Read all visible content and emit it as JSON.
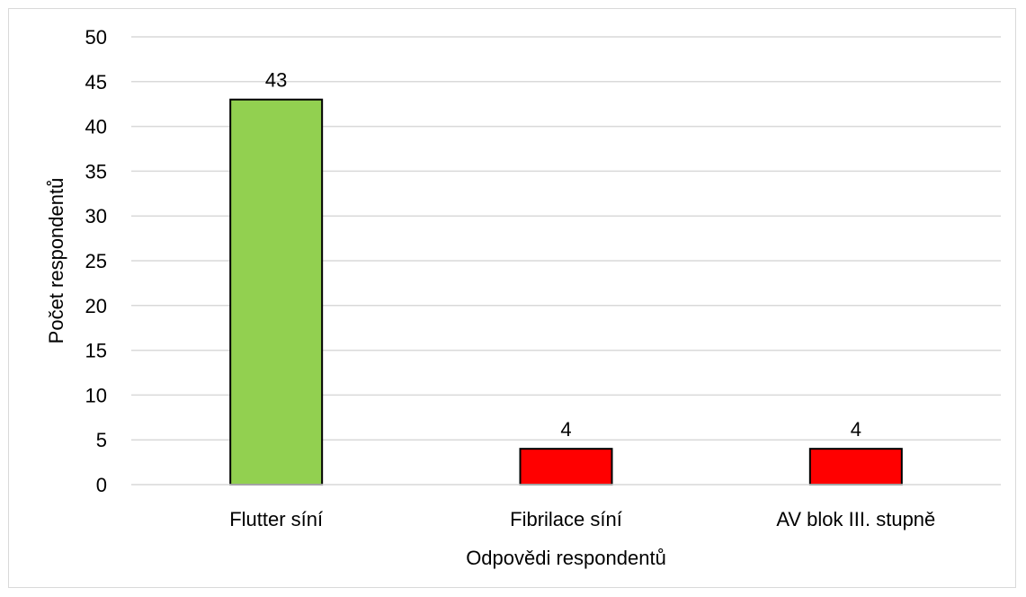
{
  "chart_data": {
    "type": "bar",
    "categories": [
      "Flutter síní",
      "Fibrilace síní",
      "AV blok III. stupně"
    ],
    "values": [
      43,
      4,
      4
    ],
    "bar_colors": [
      "#92d050",
      "#ff0000",
      "#ff0000"
    ],
    "title": "",
    "xlabel": "Odpovědi respondentů",
    "ylabel": "Počet respondentů",
    "ylim": [
      0,
      50
    ],
    "yticks": [
      0,
      5,
      10,
      15,
      20,
      25,
      30,
      35,
      40,
      45,
      50
    ],
    "grid": true,
    "legend": "none",
    "data_labels": true
  }
}
